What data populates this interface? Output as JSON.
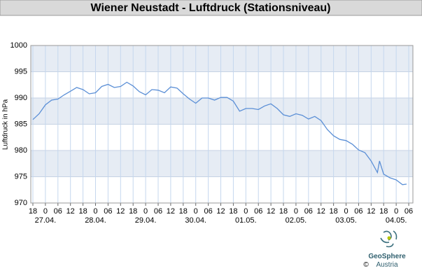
{
  "chart_data": {
    "type": "line",
    "title": "Wiener Neustadt - Luftdruck (Stationsniveau)",
    "ylabel": "Luftdruck in hPa",
    "x": [
      0,
      3,
      6,
      9,
      12,
      15,
      18,
      21,
      24,
      27,
      30,
      33,
      36,
      39,
      42,
      45,
      48,
      51,
      54,
      57,
      60,
      63,
      66,
      69,
      72,
      75,
      78,
      81,
      84,
      87,
      90,
      93,
      96,
      99,
      102,
      105,
      108,
      111,
      114,
      117,
      120,
      123,
      126,
      129,
      132,
      135,
      138,
      141,
      144,
      147,
      150,
      153,
      156,
      159,
      162,
      165,
      166,
      168,
      171,
      174,
      177,
      179
    ],
    "series": [
      {
        "name": "Luftdruck",
        "color": "#5b8fd6",
        "values": [
          985.9,
          987.0,
          988.7,
          989.6,
          989.8,
          990.6,
          991.3,
          992.0,
          991.6,
          990.8,
          991.0,
          992.2,
          992.6,
          992.0,
          992.2,
          993.0,
          992.3,
          991.2,
          990.6,
          991.6,
          991.5,
          991.0,
          992.1,
          991.9,
          990.8,
          989.8,
          989.0,
          990.0,
          990.0,
          989.6,
          990.1,
          990.1,
          989.4,
          987.5,
          988.0,
          988.0,
          987.8,
          988.5,
          988.9,
          988.0,
          986.8,
          986.5,
          987.0,
          986.7,
          986.0,
          986.5,
          985.7,
          984.0,
          982.8,
          982.1,
          981.9,
          981.2,
          980.1,
          979.6,
          978.0,
          975.8,
          978.0,
          975.5,
          974.8,
          974.4,
          973.5,
          973.6
        ]
      }
    ],
    "xlim": [
      -1,
      182
    ],
    "xticks": [
      {
        "value": 0,
        "label": "18"
      },
      {
        "value": 6,
        "label": "0"
      },
      {
        "value": 12,
        "label": "06"
      },
      {
        "value": 18,
        "label": "12"
      },
      {
        "value": 24,
        "label": "18"
      },
      {
        "value": 30,
        "label": "0"
      },
      {
        "value": 36,
        "label": "06"
      },
      {
        "value": 42,
        "label": "12"
      },
      {
        "value": 48,
        "label": "18"
      },
      {
        "value": 54,
        "label": "0"
      },
      {
        "value": 60,
        "label": "06"
      },
      {
        "value": 66,
        "label": "12"
      },
      {
        "value": 72,
        "label": "18"
      },
      {
        "value": 78,
        "label": "0"
      },
      {
        "value": 84,
        "label": "06"
      },
      {
        "value": 90,
        "label": "12"
      },
      {
        "value": 96,
        "label": "18"
      },
      {
        "value": 102,
        "label": "0"
      },
      {
        "value": 108,
        "label": "06"
      },
      {
        "value": 114,
        "label": "12"
      },
      {
        "value": 120,
        "label": "18"
      },
      {
        "value": 126,
        "label": "0"
      },
      {
        "value": 132,
        "label": "06"
      },
      {
        "value": 138,
        "label": "12"
      },
      {
        "value": 144,
        "label": "18"
      },
      {
        "value": 150,
        "label": "0"
      },
      {
        "value": 156,
        "label": "06"
      },
      {
        "value": 162,
        "label": "12"
      },
      {
        "value": 168,
        "label": "18"
      },
      {
        "value": 174,
        "label": "0"
      },
      {
        "value": 180,
        "label": "06"
      }
    ],
    "day_labels": [
      {
        "value": 6,
        "label": "27.04."
      },
      {
        "value": 30,
        "label": "28.04."
      },
      {
        "value": 54,
        "label": "29.04."
      },
      {
        "value": 78,
        "label": "30.04."
      },
      {
        "value": 102,
        "label": "01.05."
      },
      {
        "value": 126,
        "label": "02.05."
      },
      {
        "value": 150,
        "label": "03.05."
      },
      {
        "value": 174,
        "label": "04.05."
      }
    ],
    "ylim": [
      970,
      1000
    ],
    "yticks": [
      970,
      975,
      980,
      985,
      990,
      995,
      1000
    ],
    "grid": true
  },
  "logo": {
    "name": "GeoSphere",
    "sub": "Austria",
    "copyright": "©"
  }
}
